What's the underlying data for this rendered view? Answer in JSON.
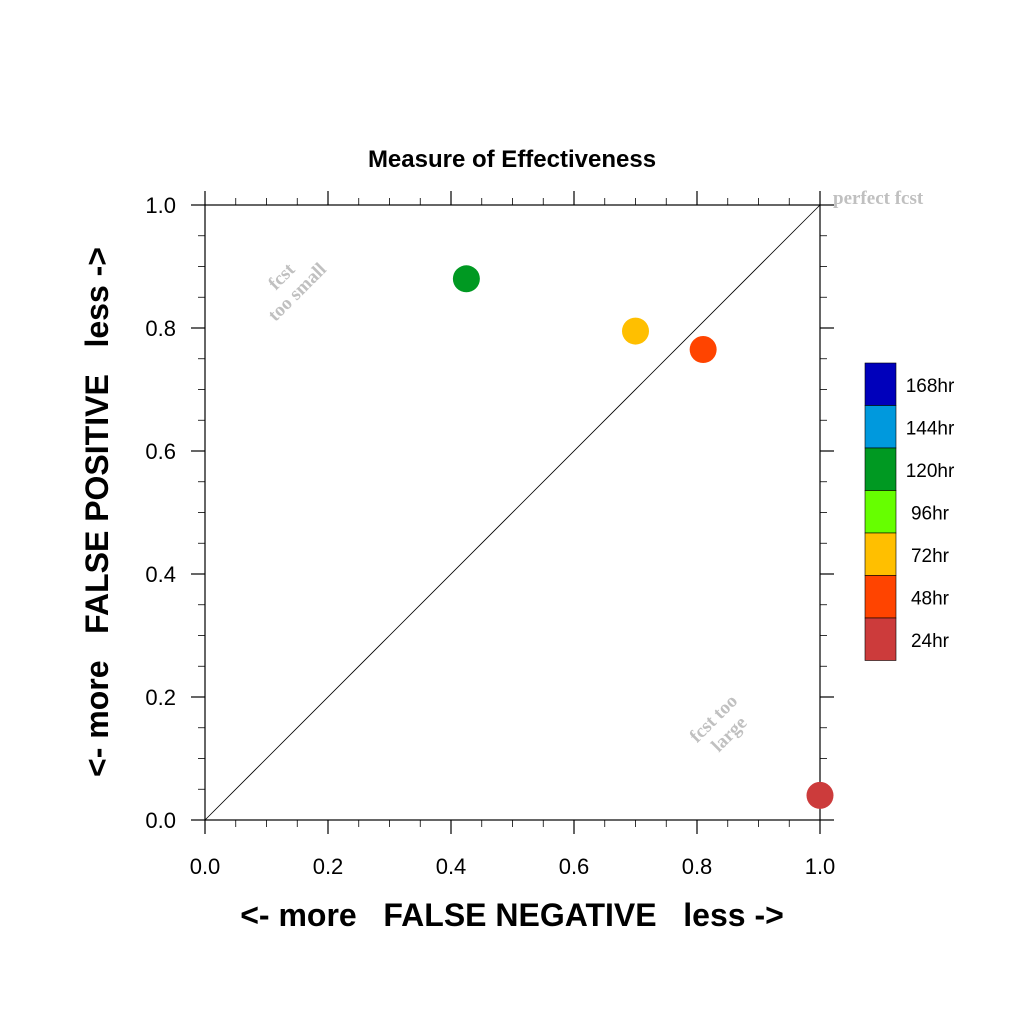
{
  "chart_data": {
    "type": "scatter",
    "title": "Measure of Effectiveness",
    "xlabel": "<- more   FALSE NEGATIVE   less ->",
    "ylabel": "<- more   FALSE POSITIVE   less ->",
    "xlim": [
      0.0,
      1.0
    ],
    "ylim": [
      0.0,
      1.0
    ],
    "x_ticks": [
      "0.0",
      "0.2",
      "0.4",
      "0.6",
      "0.8",
      "1.0"
    ],
    "y_ticks": [
      "0.0",
      "0.2",
      "0.4",
      "0.6",
      "0.8",
      "1.0"
    ],
    "grid": false,
    "diagonal_reference_line": true,
    "legend_placement": "right",
    "annotations": {
      "perfect": "perfect fcst",
      "too_small_1": "fcst",
      "too_small_2": "too small",
      "too_large_1": "fcst too",
      "too_large_2": "large"
    },
    "series": [
      {
        "name": "24hr",
        "color": "#cc3b3b",
        "points": [
          {
            "x": 1.0,
            "y": 0.04
          }
        ]
      },
      {
        "name": "48hr",
        "color": "#ff4400",
        "points": [
          {
            "x": 0.81,
            "y": 0.765
          }
        ]
      },
      {
        "name": "72hr",
        "color": "#ffbf00",
        "points": [
          {
            "x": 0.7,
            "y": 0.795
          }
        ]
      },
      {
        "name": "96hr",
        "color": "#66ff00",
        "points": []
      },
      {
        "name": "120hr",
        "color": "#009922",
        "points": [
          {
            "x": 0.425,
            "y": 0.88
          }
        ]
      },
      {
        "name": "144hr",
        "color": "#0099dd",
        "points": []
      },
      {
        "name": "168hr",
        "color": "#0000bb",
        "points": []
      }
    ]
  }
}
